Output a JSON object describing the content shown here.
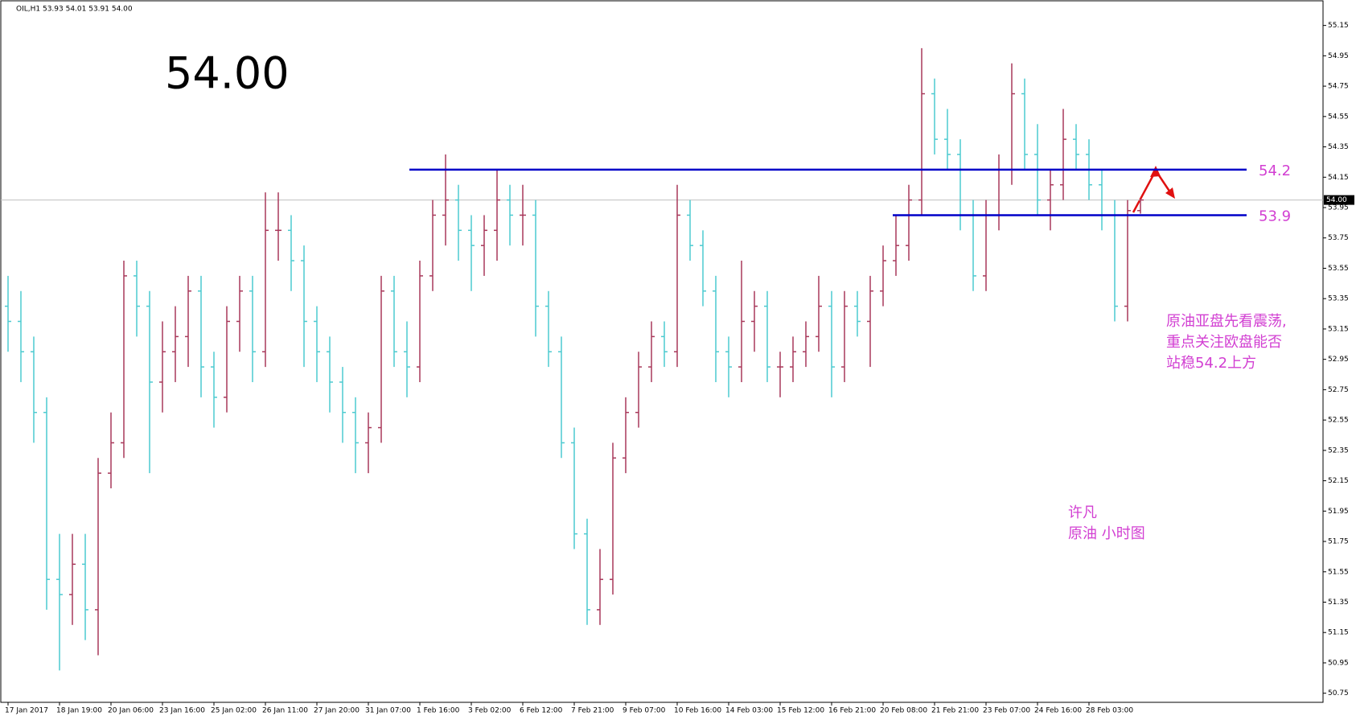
{
  "chart_data": {
    "type": "ohlc",
    "header": "OIL,H1  53.93 54.01 53.91 54.00",
    "big_price": "54.00",
    "x_labels": [
      "17 Jan 2017",
      "18 Jan 19:00",
      "20 Jan 06:00",
      "23 Jan 16:00",
      "25 Jan 02:00",
      "26 Jan 11:00",
      "27 Jan 20:00",
      "31 Jan 07:00",
      "1 Feb 16:00",
      "3 Feb 02:00",
      "6 Feb 12:00",
      "7 Feb 21:00",
      "9 Feb 07:00",
      "10 Feb 16:00",
      "14 Feb 03:00",
      "15 Feb 12:00",
      "16 Feb 21:00",
      "20 Feb 08:00",
      "21 Feb 21:00",
      "23 Feb 07:00",
      "24 Feb 16:00",
      "28 Feb 03:00"
    ],
    "ohlc": [
      [
        53.3,
        53.5,
        53.0,
        53.2
      ],
      [
        53.2,
        53.4,
        52.8,
        53.0
      ],
      [
        53.0,
        53.1,
        52.4,
        52.6
      ],
      [
        52.6,
        52.7,
        51.3,
        51.5
      ],
      [
        51.5,
        51.8,
        50.9,
        51.4
      ],
      [
        51.4,
        51.8,
        51.2,
        51.6
      ],
      [
        51.6,
        51.8,
        51.1,
        51.3
      ],
      [
        51.3,
        52.3,
        51.0,
        52.2
      ],
      [
        52.2,
        52.6,
        52.1,
        52.4
      ],
      [
        52.4,
        53.6,
        52.3,
        53.5
      ],
      [
        53.5,
        53.6,
        53.1,
        53.3
      ],
      [
        53.3,
        53.4,
        52.2,
        52.8
      ],
      [
        52.8,
        53.2,
        52.6,
        53.0
      ],
      [
        53.0,
        53.3,
        52.8,
        53.1
      ],
      [
        53.1,
        53.5,
        52.9,
        53.4
      ],
      [
        53.4,
        53.5,
        52.7,
        52.9
      ],
      [
        52.9,
        53.0,
        52.5,
        52.7
      ],
      [
        52.7,
        53.3,
        52.6,
        53.2
      ],
      [
        53.2,
        53.5,
        53.0,
        53.4
      ],
      [
        53.4,
        53.5,
        52.8,
        53.0
      ],
      [
        53.0,
        54.05,
        52.9,
        53.8
      ],
      [
        53.8,
        54.05,
        53.6,
        53.8
      ],
      [
        53.8,
        53.9,
        53.4,
        53.6
      ],
      [
        53.6,
        53.7,
        52.9,
        53.2
      ],
      [
        53.2,
        53.3,
        52.8,
        53.0
      ],
      [
        53.0,
        53.1,
        52.6,
        52.8
      ],
      [
        52.8,
        52.9,
        52.4,
        52.6
      ],
      [
        52.6,
        52.7,
        52.2,
        52.4
      ],
      [
        52.4,
        52.6,
        52.2,
        52.5
      ],
      [
        52.5,
        53.5,
        52.4,
        53.4
      ],
      [
        53.4,
        53.5,
        52.9,
        53.0
      ],
      [
        53.0,
        53.2,
        52.7,
        52.9
      ],
      [
        52.9,
        53.6,
        52.8,
        53.5
      ],
      [
        53.5,
        54.0,
        53.4,
        53.9
      ],
      [
        53.9,
        54.3,
        53.7,
        54.0
      ],
      [
        54.0,
        54.1,
        53.6,
        53.8
      ],
      [
        53.8,
        53.9,
        53.4,
        53.7
      ],
      [
        53.7,
        53.9,
        53.5,
        53.8
      ],
      [
        53.8,
        54.2,
        53.6,
        54.0
      ],
      [
        54.0,
        54.1,
        53.7,
        53.9
      ],
      [
        53.9,
        54.1,
        53.7,
        53.9
      ],
      [
        53.9,
        54.0,
        53.1,
        53.3
      ],
      [
        53.3,
        53.4,
        52.9,
        53.0
      ],
      [
        53.0,
        53.1,
        52.3,
        52.4
      ],
      [
        52.4,
        52.5,
        51.7,
        51.8
      ],
      [
        51.8,
        51.9,
        51.2,
        51.3
      ],
      [
        51.3,
        51.7,
        51.2,
        51.5
      ],
      [
        51.5,
        52.4,
        51.4,
        52.3
      ],
      [
        52.3,
        52.7,
        52.2,
        52.6
      ],
      [
        52.6,
        53.0,
        52.5,
        52.9
      ],
      [
        52.9,
        53.2,
        52.8,
        53.1
      ],
      [
        53.1,
        53.2,
        52.9,
        53.0
      ],
      [
        53.0,
        54.1,
        52.9,
        53.9
      ],
      [
        53.9,
        54.0,
        53.6,
        53.7
      ],
      [
        53.7,
        53.8,
        53.3,
        53.4
      ],
      [
        53.4,
        53.5,
        52.8,
        53.0
      ],
      [
        53.0,
        53.1,
        52.7,
        52.9
      ],
      [
        52.9,
        53.6,
        52.8,
        53.2
      ],
      [
        53.2,
        53.4,
        53.0,
        53.3
      ],
      [
        53.3,
        53.4,
        52.8,
        52.9
      ],
      [
        52.9,
        53.0,
        52.7,
        52.9
      ],
      [
        52.9,
        53.1,
        52.8,
        53.0
      ],
      [
        53.0,
        53.2,
        52.9,
        53.1
      ],
      [
        53.1,
        53.5,
        53.0,
        53.3
      ],
      [
        53.3,
        53.4,
        52.7,
        52.9
      ],
      [
        52.9,
        53.4,
        52.8,
        53.3
      ],
      [
        53.3,
        53.4,
        53.1,
        53.2
      ],
      [
        53.2,
        53.5,
        52.9,
        53.4
      ],
      [
        53.4,
        53.7,
        53.3,
        53.6
      ],
      [
        53.6,
        53.9,
        53.5,
        53.7
      ],
      [
        53.7,
        54.1,
        53.6,
        54.0
      ],
      [
        54.0,
        55.0,
        53.9,
        54.7
      ],
      [
        54.7,
        54.8,
        54.3,
        54.4
      ],
      [
        54.4,
        54.6,
        54.2,
        54.3
      ],
      [
        54.3,
        54.4,
        53.8,
        53.9
      ],
      [
        53.9,
        54.0,
        53.4,
        53.5
      ],
      [
        53.5,
        54.0,
        53.4,
        53.9
      ],
      [
        53.9,
        54.3,
        53.8,
        54.2
      ],
      [
        54.2,
        54.9,
        54.1,
        54.7
      ],
      [
        54.7,
        54.8,
        54.2,
        54.3
      ],
      [
        54.3,
        54.5,
        53.9,
        54.0
      ],
      [
        54.0,
        54.2,
        53.8,
        54.1
      ],
      [
        54.1,
        54.6,
        54.0,
        54.4
      ],
      [
        54.4,
        54.5,
        54.2,
        54.3
      ],
      [
        54.3,
        54.4,
        54.0,
        54.1
      ],
      [
        54.1,
        54.2,
        53.8,
        53.9
      ],
      [
        53.9,
        54.0,
        53.2,
        53.3
      ],
      [
        53.3,
        54.0,
        53.2,
        53.93
      ],
      [
        53.93,
        54.01,
        53.91,
        54.0
      ]
    ],
    "up_color": "#a8385a",
    "down_color": "#4ccad0",
    "ylim": [
      50.69,
      55.27
    ],
    "yticks": [
      55.15,
      54.95,
      54.75,
      54.55,
      54.35,
      54.15,
      53.95,
      53.75,
      53.55,
      53.35,
      53.15,
      52.95,
      52.75,
      52.55,
      52.35,
      52.15,
      51.95,
      51.75,
      51.55,
      51.35,
      51.15,
      50.95,
      50.75
    ],
    "current_price": {
      "value": 54,
      "label": "54.00"
    },
    "levels": [
      54.2,
      53.9
    ],
    "level_color": "#0000c8",
    "annotation": [
      "原油亚盘先看震荡,",
      "重点关注欧盘能否",
      "站稳54.2上方"
    ],
    "author": [
      "许凡",
      "原油  小时图"
    ]
  }
}
